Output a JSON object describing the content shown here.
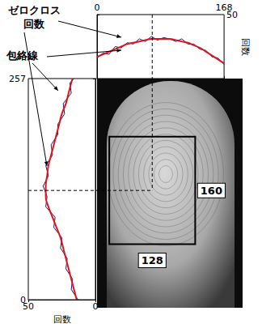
{
  "chart_data": [
    {
      "type": "line",
      "xlim": [
        0,
        168
      ],
      "xticks": [
        0,
        168
      ],
      "ylim": [
        0,
        50
      ],
      "yticks": [
        50
      ],
      "ylabel": "回数",
      "grid": false,
      "legend": false,
      "peak": 73,
      "x": [
        0,
        8,
        16,
        24,
        32,
        40,
        48,
        56,
        64,
        72,
        80,
        88,
        96,
        104,
        112,
        120,
        128,
        136,
        144,
        152,
        160,
        168
      ],
      "series": [
        {
          "name": "ゼロクロス\n回数",
          "color": "#1a1a7a",
          "values": [
            16,
            20,
            19,
            25,
            24,
            28,
            27,
            31,
            29,
            33,
            30,
            32,
            31,
            29,
            31,
            27,
            27,
            23,
            22,
            17,
            16,
            11
          ]
        },
        {
          "name": "包絡線",
          "color": "#e0141e",
          "values": [
            17,
            19,
            21,
            23,
            25,
            27,
            28,
            29,
            30,
            31,
            31,
            31,
            31,
            30,
            29,
            28,
            26,
            24,
            21,
            18,
            15,
            12
          ]
        }
      ]
    },
    {
      "type": "line",
      "xlim": [
        50,
        0
      ],
      "xticks": [
        50,
        0
      ],
      "xlabel": "回数",
      "ylim": [
        0,
        257
      ],
      "yticks": [
        0,
        257
      ],
      "grid": false,
      "legend": false,
      "peak": 127,
      "y": [
        0,
        12,
        24,
        36,
        48,
        60,
        72,
        84,
        96,
        108,
        120,
        132,
        144,
        156,
        168,
        180,
        192,
        204,
        216,
        228,
        240,
        252,
        257
      ],
      "series": [
        {
          "name": "ゼロクロス\n回数",
          "color": "#1a1a7a",
          "values": [
            13,
            18,
            17,
            22,
            21,
            26,
            25,
            31,
            30,
            37,
            36,
            39,
            35,
            37,
            32,
            33,
            28,
            28,
            23,
            24,
            18,
            19,
            16
          ]
        },
        {
          "name": "包絡線",
          "color": "#e0141e",
          "values": [
            14,
            16,
            18,
            20,
            22,
            24,
            26,
            29,
            32,
            35,
            37,
            37,
            36,
            35,
            33,
            31,
            29,
            27,
            25,
            22,
            20,
            18,
            17
          ]
        }
      ]
    }
  ],
  "roi": {
    "width": 128,
    "height": 160
  }
}
